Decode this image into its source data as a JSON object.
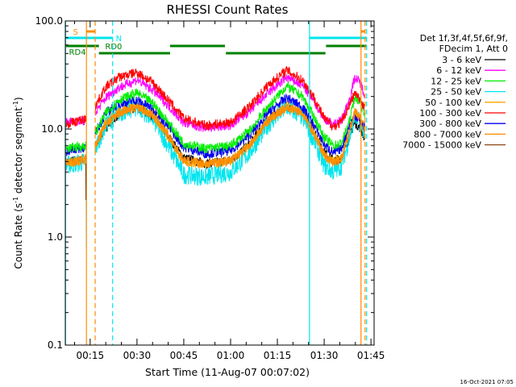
{
  "chart_data": {
    "type": "line",
    "title": "RHESSI Count Rates",
    "xlabel": "Start Time (11-Aug-07 00:07:02)",
    "ylabel": "Count Rate (s⁻¹ detector segment⁻¹)",
    "ylabel_parts": {
      "prefix": "Count Rate (s",
      "sup1": "-1",
      "mid": " detector segment",
      "sup2": "-1",
      "suffix": ")"
    },
    "y_scale": "log",
    "ylim": [
      0.1,
      100.0
    ],
    "xlim_minutes": [
      7.03,
      106.0
    ],
    "x_ticks": [
      {
        "minute": 15,
        "label": "00:15"
      },
      {
        "minute": 30,
        "label": "00:30"
      },
      {
        "minute": 45,
        "label": "00:45"
      },
      {
        "minute": 60,
        "label": "01:00"
      },
      {
        "minute": 75,
        "label": "01:15"
      },
      {
        "minute": 90,
        "label": "01:30"
      },
      {
        "minute": 105,
        "label": "01:45"
      }
    ],
    "y_ticks": [
      {
        "value": 0.1,
        "label": "0.1"
      },
      {
        "value": 1.0,
        "label": "1.0"
      },
      {
        "value": 10.0,
        "label": "10.0"
      },
      {
        "value": 100.0,
        "label": "100.0"
      }
    ],
    "legend_position": "right",
    "legend_header": [
      "Det 1f,3f,4f,5f,6f,9f,",
      "FDecim 1, Att 0"
    ],
    "series": [
      {
        "name": "3 - 6 keV",
        "color": "#000000",
        "anchors": [
          [
            7.1,
            5.0
          ],
          [
            13.8,
            5.2
          ],
          [
            16.5,
            6.6
          ],
          [
            20,
            10.5
          ],
          [
            24,
            13.5
          ],
          [
            30,
            16
          ],
          [
            35,
            13
          ],
          [
            40,
            8.5
          ],
          [
            45,
            5.4
          ],
          [
            52,
            4.8
          ],
          [
            60,
            5.1
          ],
          [
            66,
            7.2
          ],
          [
            72,
            12.2
          ],
          [
            78,
            16
          ],
          [
            83,
            14
          ],
          [
            87,
            9.2
          ],
          [
            90,
            6.2
          ],
          [
            93,
            5.1
          ],
          [
            95.5,
            5.4
          ],
          [
            98,
            8.5
          ],
          [
            99.8,
            11.5
          ],
          [
            101.5,
            10.2
          ],
          [
            103,
            8.3
          ]
        ]
      },
      {
        "name": "6 - 12 keV",
        "color": "#ff00ff",
        "anchors": [
          [
            7.1,
            11.5
          ],
          [
            13.8,
            12
          ],
          [
            16.5,
            14
          ],
          [
            20,
            19.5
          ],
          [
            24,
            24
          ],
          [
            30,
            28.5
          ],
          [
            35,
            23
          ],
          [
            40,
            16.5
          ],
          [
            45,
            11.4
          ],
          [
            52,
            10.2
          ],
          [
            60,
            10.8
          ],
          [
            66,
            14.5
          ],
          [
            72,
            21.5
          ],
          [
            78,
            30
          ],
          [
            83,
            25.5
          ],
          [
            87,
            17.5
          ],
          [
            90,
            12.5
          ],
          [
            93,
            11
          ],
          [
            95.5,
            12
          ],
          [
            98,
            18.5
          ],
          [
            99.8,
            30
          ],
          [
            101.5,
            27
          ],
          [
            103,
            21
          ]
        ]
      },
      {
        "name": "12 - 25 keV",
        "color": "#00ee00",
        "anchors": [
          [
            7.1,
            6.6
          ],
          [
            13.8,
            7.0
          ],
          [
            16.5,
            9.0
          ],
          [
            20,
            14
          ],
          [
            24,
            18.5
          ],
          [
            30,
            21.5
          ],
          [
            35,
            17.5
          ],
          [
            40,
            11.5
          ],
          [
            45,
            7.4
          ],
          [
            52,
            6.6
          ],
          [
            60,
            7.0
          ],
          [
            66,
            9.6
          ],
          [
            72,
            16
          ],
          [
            78,
            25
          ],
          [
            83,
            20
          ],
          [
            87,
            12.5
          ],
          [
            90,
            8.4
          ],
          [
            93,
            7.0
          ],
          [
            95.5,
            7.4
          ],
          [
            98,
            11.5
          ],
          [
            99.8,
            20
          ],
          [
            101.5,
            18
          ],
          [
            103,
            14
          ]
        ]
      },
      {
        "name": "25 - 50 keV",
        "color": "#00e5ee",
        "anchors": [
          [
            7.1,
            4.6
          ],
          [
            13.8,
            5.0
          ],
          [
            16.5,
            6.4
          ],
          [
            20,
            11
          ],
          [
            24,
            14
          ],
          [
            30,
            16
          ],
          [
            35,
            12.5
          ],
          [
            40,
            7.0
          ],
          [
            45,
            3.8
          ],
          [
            52,
            3.6
          ],
          [
            60,
            4.0
          ],
          [
            66,
            6.0
          ],
          [
            72,
            11
          ],
          [
            78,
            16
          ],
          [
            83,
            13
          ],
          [
            87,
            7.6
          ],
          [
            90,
            4.6
          ],
          [
            93,
            4.0
          ],
          [
            95.5,
            4.6
          ],
          [
            98,
            8.0
          ],
          [
            99.8,
            13
          ],
          [
            101.5,
            11.5
          ],
          [
            103,
            9.5
          ]
        ]
      },
      {
        "name": "50 - 100 keV",
        "color": "#ffa500",
        "anchors": [
          [
            7.1,
            4.8
          ],
          [
            13.8,
            5.2
          ],
          [
            16.5,
            6.8
          ],
          [
            20,
            11.5
          ],
          [
            24,
            14.5
          ],
          [
            30,
            16.5
          ],
          [
            35,
            13.5
          ],
          [
            40,
            8.5
          ],
          [
            45,
            5.0
          ],
          [
            52,
            4.7
          ],
          [
            60,
            5.0
          ],
          [
            66,
            7.0
          ],
          [
            72,
            12
          ],
          [
            78,
            16.5
          ],
          [
            83,
            14
          ],
          [
            87,
            8.8
          ],
          [
            90,
            5.8
          ],
          [
            93,
            5.0
          ],
          [
            95.5,
            5.4
          ],
          [
            98,
            9.2
          ],
          [
            99.8,
            14.5
          ],
          [
            101.5,
            12.5
          ],
          [
            103,
            10
          ]
        ]
      },
      {
        "name": "100 - 300 keV",
        "color": "#ff0000",
        "anchors": [
          [
            7.1,
            11
          ],
          [
            13.8,
            12.5
          ],
          [
            16.5,
            16
          ],
          [
            20,
            24.5
          ],
          [
            24,
            30
          ],
          [
            30,
            33.5
          ],
          [
            35,
            27
          ],
          [
            40,
            18.5
          ],
          [
            45,
            12.5
          ],
          [
            52,
            10.8
          ],
          [
            60,
            11.5
          ],
          [
            66,
            16
          ],
          [
            72,
            25.5
          ],
          [
            78,
            35
          ],
          [
            83,
            28.5
          ],
          [
            87,
            19
          ],
          [
            90,
            12.5
          ],
          [
            93,
            10.5
          ],
          [
            95.5,
            11.5
          ],
          [
            98,
            16.5
          ],
          [
            99.8,
            21.5
          ],
          [
            101.5,
            18.5
          ],
          [
            103,
            16
          ]
        ]
      },
      {
        "name": "300 - 800 keV",
        "color": "#0000ee",
        "anchors": [
          [
            7.1,
            6.2
          ],
          [
            13.8,
            6.8
          ],
          [
            16.5,
            9.0
          ],
          [
            20,
            14
          ],
          [
            24,
            17
          ],
          [
            30,
            18.5
          ],
          [
            35,
            15.5
          ],
          [
            40,
            10.5
          ],
          [
            45,
            6.8
          ],
          [
            52,
            5.9
          ],
          [
            60,
            6.3
          ],
          [
            66,
            8.7
          ],
          [
            72,
            14
          ],
          [
            78,
            19.5
          ],
          [
            83,
            16
          ],
          [
            87,
            10.5
          ],
          [
            90,
            7.2
          ],
          [
            93,
            6.0
          ],
          [
            95.5,
            6.6
          ],
          [
            98,
            10.5
          ],
          [
            99.8,
            13.5
          ],
          [
            101.5,
            11.8
          ],
          [
            103,
            10.4
          ]
        ]
      },
      {
        "name": "800 - 7000 keV",
        "color": "#ff8c00",
        "anchors": [
          [
            7.1,
            4.8
          ],
          [
            13.8,
            5.3
          ],
          [
            16.5,
            6.8
          ],
          [
            20,
            11
          ],
          [
            24,
            14
          ],
          [
            30,
            16
          ],
          [
            35,
            13.5
          ],
          [
            40,
            8.8
          ],
          [
            45,
            5.1
          ],
          [
            52,
            4.8
          ],
          [
            60,
            5.1
          ],
          [
            66,
            7.1
          ],
          [
            72,
            12
          ],
          [
            78,
            16
          ],
          [
            83,
            14
          ],
          [
            87,
            8.8
          ],
          [
            90,
            5.7
          ],
          [
            93,
            4.9
          ],
          [
            95.5,
            5.3
          ],
          [
            98,
            9.2
          ],
          [
            99.8,
            14.5
          ],
          [
            101.5,
            12.5
          ],
          [
            103,
            10
          ]
        ]
      },
      {
        "name": "7000 - 15000 keV",
        "color": "#8b4513",
        "anchors": [
          [
            7.1,
            4.9
          ],
          [
            13.8,
            5.4
          ],
          [
            16.5,
            6.9
          ],
          [
            20,
            11.1
          ],
          [
            24,
            14.1
          ],
          [
            30,
            16.1
          ],
          [
            35,
            13.6
          ],
          [
            40,
            8.9
          ],
          [
            45,
            5.2
          ],
          [
            52,
            4.9
          ],
          [
            60,
            5.2
          ],
          [
            66,
            7.2
          ],
          [
            72,
            12.1
          ],
          [
            78,
            16.1
          ],
          [
            83,
            14.1
          ],
          [
            87,
            8.9
          ],
          [
            90,
            5.8
          ],
          [
            93,
            5.0
          ],
          [
            95.5,
            5.4
          ],
          [
            98,
            9.3
          ],
          [
            99.8,
            14.6
          ],
          [
            101.5,
            12.6
          ],
          [
            103,
            10.1
          ]
        ]
      }
    ],
    "vertical_lines": [
      {
        "minute": 7.1,
        "color": "#00e5ee",
        "style": "solid"
      },
      {
        "minute": 13.8,
        "color": "#ff8c00",
        "style": "solid"
      },
      {
        "minute": 16.6,
        "color": "#ff8c00",
        "style": "dashed"
      },
      {
        "minute": 22.2,
        "color": "#00e5ee",
        "style": "dashed"
      },
      {
        "minute": 85.3,
        "color": "#00e5ee",
        "style": "solid"
      },
      {
        "minute": 101.8,
        "color": "#ff8c00",
        "style": "solid"
      },
      {
        "minute": 103.1,
        "color": "#ff8c00",
        "style": "dashed"
      },
      {
        "minute": 103.6,
        "color": "#00e5ee",
        "style": "dashed"
      }
    ],
    "flag_bars": [
      {
        "label": "S",
        "color": "#ff8c00",
        "label_minute": 9.5,
        "segments": [
          [
            13.8,
            16.6
          ],
          [
            101.8,
            103.1
          ]
        ],
        "level": 0
      },
      {
        "label": "N",
        "color": "#00e5ee",
        "label_minute": 23.2,
        "segments": [
          [
            7.1,
            22.2
          ],
          [
            85.3,
            103.6
          ]
        ],
        "level": 1
      },
      {
        "label": "RD0",
        "color": "#008000",
        "label_minute": 19.8,
        "segments": [
          [
            7.1,
            17.8
          ],
          [
            40.6,
            58.2
          ],
          [
            90.6,
            103.6
          ]
        ],
        "level": 2
      },
      {
        "label": "RD4",
        "color": "#008000",
        "label_minute": 8.2,
        "segments": [
          [
            17.8,
            40.6
          ],
          [
            58.5,
            90.4
          ]
        ],
        "level": 3
      }
    ],
    "timestamp": "16-Oct-2021 07:05"
  }
}
